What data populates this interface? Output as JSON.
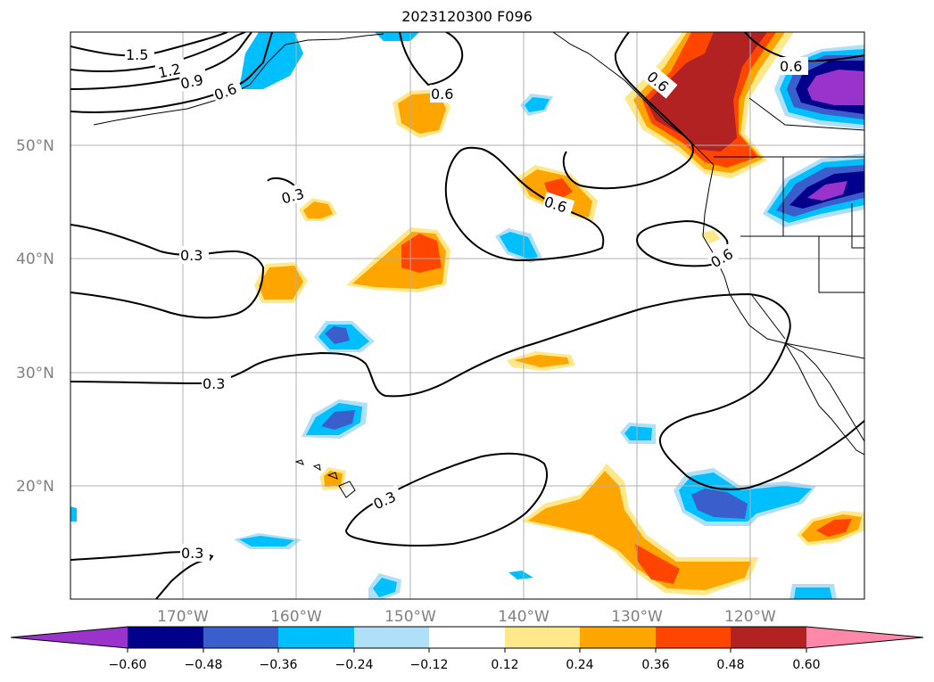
{
  "title": "2023120300 F096",
  "map": {
    "lat_labels": [
      "50°N",
      "40°N",
      "30°N",
      "20°N"
    ],
    "lon_labels": [
      "170°W",
      "160°W",
      "150°W",
      "140°W",
      "130°W",
      "120°W"
    ],
    "contour_labels": [
      {
        "id": "c15",
        "text": "1.5"
      },
      {
        "id": "c12",
        "text": "1.2"
      },
      {
        "id": "c09",
        "text": "0.9"
      },
      {
        "id": "c06a",
        "text": "0.6"
      },
      {
        "id": "c06b",
        "text": "0.6"
      },
      {
        "id": "c06c",
        "text": "0.6"
      },
      {
        "id": "c06d",
        "text": "0.6"
      },
      {
        "id": "c06e",
        "text": "0.6"
      },
      {
        "id": "c06f",
        "text": "0.6"
      },
      {
        "id": "c03a",
        "text": "0.3"
      },
      {
        "id": "c03b",
        "text": "0.3"
      },
      {
        "id": "c03c",
        "text": "0.3"
      },
      {
        "id": "c03d",
        "text": "0.3"
      },
      {
        "id": "c03e",
        "text": "0.3"
      }
    ]
  },
  "colorbar": {
    "labels": [
      "−0.60",
      "−0.48",
      "−0.36",
      "−0.24",
      "−0.12",
      "0.12",
      "0.24",
      "0.36",
      "0.48",
      "0.60"
    ],
    "colors": [
      "#9933cc",
      "#00008b",
      "#3a5fcd",
      "#00bfff",
      "#b0e0f8",
      "#ffffff",
      "#ffe88a",
      "#ffa500",
      "#ff4500",
      "#b22222",
      "#ff88aa"
    ]
  }
}
